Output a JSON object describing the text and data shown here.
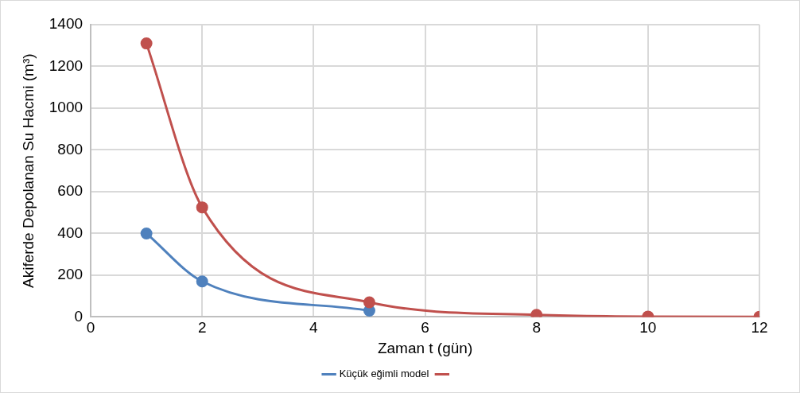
{
  "chart_data": {
    "type": "line",
    "xlabel": "Zaman t (gün)",
    "ylabel": "Akiferde Depolanan Su Hacmi (m³)",
    "x": [
      1,
      2,
      5,
      8,
      10,
      12
    ],
    "series": [
      {
        "name": "Küçük eğimli model",
        "color": "#4f81bd",
        "values": [
          400,
          170,
          30,
          null,
          null,
          null
        ]
      },
      {
        "color": "#c0504d",
        "values": [
          1310,
          525,
          70,
          10,
          2,
          1
        ]
      }
    ],
    "xlim": [
      0,
      12
    ],
    "xticks": [
      0,
      2,
      4,
      6,
      8,
      10,
      12
    ],
    "ylim": [
      0,
      1400
    ],
    "yticks": [
      0,
      200,
      400,
      600,
      800,
      1000,
      1200,
      1400
    ],
    "grid": true,
    "legend": "bottom",
    "marker": "circle",
    "line_style": "solid"
  }
}
